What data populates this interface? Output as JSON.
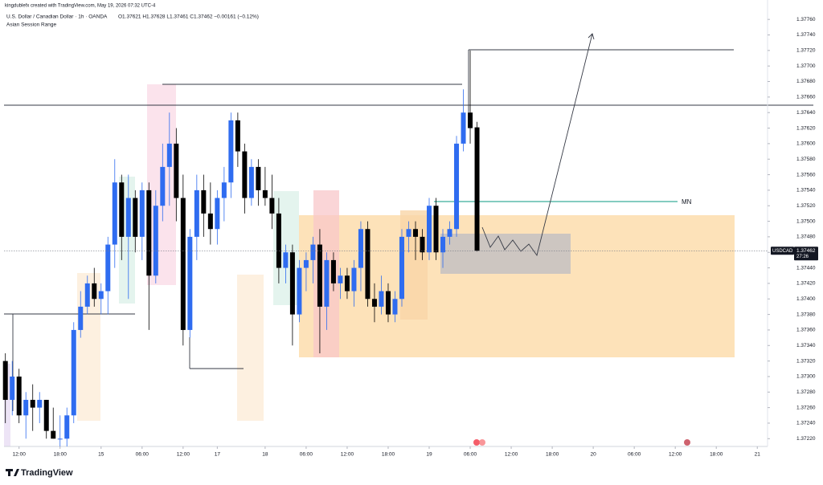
{
  "watermark": "kingdublefx created with TradingView.com, May 19, 2026 07:32 UTC-4",
  "footer": "TradingView",
  "chart_data": {
    "type": "candlestick",
    "symbol_line": "U.S. Dollar / Canadian Dollar · 1h · OANDA",
    "ohlc_line": "O1.37621 H1.37628 L1.37461 C1.37462 −0.00161 (−0.12%)",
    "indicator": "Asian Session Range",
    "annotation": "MN",
    "up_color": "#2f6cf0",
    "down_color": "#000000",
    "x": [
      -2,
      -1,
      0,
      1,
      2,
      3,
      4,
      5,
      6,
      7,
      8,
      9,
      10,
      11,
      12,
      13,
      14,
      15,
      16,
      17,
      18,
      19,
      20,
      21,
      22,
      23,
      24,
      25,
      26,
      27,
      28,
      29,
      30,
      31,
      32,
      33,
      34,
      35,
      36,
      37,
      38,
      39,
      40,
      41,
      42,
      43,
      44,
      45,
      46,
      47,
      48,
      49,
      50,
      51,
      52,
      53,
      54,
      55,
      56,
      57,
      58,
      59,
      60,
      61,
      62,
      63,
      64,
      65,
      66,
      67
    ],
    "open": [
      1.3732,
      1.3727,
      1.373,
      1.3725,
      1.3727,
      1.3726,
      1.3727,
      1.3723,
      1.3722,
      1.3722,
      1.3725,
      1.3736,
      1.3739,
      1.3742,
      1.374,
      1.3741,
      1.3747,
      1.3755,
      1.3748,
      1.3753,
      1.3748,
      1.3754,
      1.3743,
      1.3752,
      1.3757,
      1.376,
      1.3753,
      1.3736,
      1.3748,
      1.3754,
      1.3751,
      1.3749,
      1.3753,
      1.3755,
      1.3763,
      1.3759,
      1.3753,
      1.3757,
      1.3754,
      1.3753,
      1.3751,
      1.3744,
      1.3746,
      1.3738,
      1.3744,
      1.3745,
      1.3747,
      1.3739,
      1.3745,
      1.3742,
      1.3743,
      1.3741,
      1.3744,
      1.3749,
      1.374,
      1.3739,
      1.3741,
      1.3738,
      1.374,
      1.3748,
      1.3749,
      1.3748,
      1.3746,
      1.3752,
      1.3746,
      1.3748,
      1.3749,
      1.376,
      1.3764,
      1.37621
    ],
    "high": [
      1.3733,
      1.3732,
      1.3731,
      1.3728,
      1.3729,
      1.3728,
      1.3727,
      1.3726,
      1.3725,
      1.3726,
      1.3737,
      1.3741,
      1.3743,
      1.3744,
      1.3742,
      1.3748,
      1.3758,
      1.3756,
      1.3756,
      1.3754,
      1.3755,
      1.3755,
      1.3754,
      1.376,
      1.3764,
      1.3762,
      1.3756,
      1.3749,
      1.3756,
      1.3756,
      1.3755,
      1.3754,
      1.3757,
      1.3764,
      1.3764,
      1.376,
      1.3758,
      1.3758,
      1.3757,
      1.3756,
      1.3753,
      1.3747,
      1.3747,
      1.3745,
      1.3746,
      1.3748,
      1.3749,
      1.3746,
      1.3746,
      1.3744,
      1.3744,
      1.3745,
      1.375,
      1.375,
      1.3742,
      1.3743,
      1.3742,
      1.3741,
      1.3749,
      1.375,
      1.375,
      1.3749,
      1.3753,
      1.3753,
      1.3749,
      1.375,
      1.3761,
      1.3767,
      1.3772,
      1.37628
    ],
    "low": [
      1.3724,
      1.3725,
      1.3724,
      1.3722,
      1.3723,
      1.3724,
      1.3722,
      1.3722,
      1.3721,
      1.3721,
      1.3724,
      1.3735,
      1.3738,
      1.3739,
      1.3738,
      1.3738,
      1.3744,
      1.3745,
      1.374,
      1.3746,
      1.3745,
      1.3736,
      1.3742,
      1.375,
      1.3752,
      1.375,
      1.3734,
      1.3735,
      1.3745,
      1.3748,
      1.3747,
      1.3747,
      1.375,
      1.3753,
      1.3757,
      1.3751,
      1.3752,
      1.3752,
      1.3752,
      1.3749,
      1.3742,
      1.3742,
      1.3734,
      1.3737,
      1.3741,
      1.3742,
      1.3733,
      1.3736,
      1.3741,
      1.374,
      1.374,
      1.3739,
      1.3741,
      1.3739,
      1.3737,
      1.3738,
      1.3737,
      1.3737,
      1.3739,
      1.3746,
      1.3745,
      1.3745,
      1.3745,
      1.3745,
      1.3744,
      1.3747,
      1.3748,
      1.3759,
      1.376,
      1.37461
    ],
    "close": [
      1.3727,
      1.373,
      1.3725,
      1.3727,
      1.3726,
      1.3727,
      1.3723,
      1.3722,
      1.3722,
      1.3725,
      1.3736,
      1.3739,
      1.3742,
      1.374,
      1.3741,
      1.3747,
      1.3755,
      1.3748,
      1.3753,
      1.3748,
      1.3754,
      1.3743,
      1.3752,
      1.3757,
      1.376,
      1.3753,
      1.3736,
      1.3748,
      1.3754,
      1.3751,
      1.3749,
      1.3753,
      1.3755,
      1.3763,
      1.3759,
      1.3753,
      1.3757,
      1.3754,
      1.3753,
      1.3751,
      1.3744,
      1.3746,
      1.3738,
      1.3744,
      1.3745,
      1.3747,
      1.3739,
      1.3745,
      1.3742,
      1.3743,
      1.3741,
      1.3744,
      1.3749,
      1.374,
      1.3739,
      1.3741,
      1.3738,
      1.374,
      1.3748,
      1.3749,
      1.3748,
      1.3746,
      1.3752,
      1.3746,
      1.3748,
      1.3749,
      1.376,
      1.3764,
      1.3762,
      1.37462
    ],
    "xlim": [
      -2.2,
      109.5
    ],
    "xticks": [
      {
        "value": 0,
        "label": "12:00"
      },
      {
        "value": 6,
        "label": "18:00"
      },
      {
        "value": 12,
        "label": "15"
      },
      {
        "value": 18,
        "label": "06:00"
      },
      {
        "value": 24,
        "label": "12:00"
      },
      {
        "value": 29,
        "label": "17"
      },
      {
        "value": 36,
        "label": "18"
      },
      {
        "value": 42,
        "label": "06:00"
      },
      {
        "value": 48,
        "label": "12:00"
      },
      {
        "value": 54,
        "label": "18:00"
      },
      {
        "value": 60,
        "label": "19"
      },
      {
        "value": 66,
        "label": "06:00"
      },
      {
        "value": 72,
        "label": "12:00"
      },
      {
        "value": 78,
        "label": "18:00"
      },
      {
        "value": 84,
        "label": "20"
      },
      {
        "value": 90,
        "label": "06:00"
      },
      {
        "value": 96,
        "label": "12:00"
      },
      {
        "value": 102,
        "label": "18:00"
      },
      {
        "value": 108,
        "label": "21"
      }
    ],
    "ylim": [
      1.37211,
      1.37785
    ],
    "yticks": [
      {
        "value": 1.3722,
        "label": "1.37220"
      },
      {
        "value": 1.3724,
        "label": "1.37240"
      },
      {
        "value": 1.3726,
        "label": "1.37260"
      },
      {
        "value": 1.3728,
        "label": "1.37280"
      },
      {
        "value": 1.373,
        "label": "1.37300"
      },
      {
        "value": 1.3732,
        "label": "1.37320"
      },
      {
        "value": 1.3734,
        "label": "1.37340"
      },
      {
        "value": 1.3736,
        "label": "1.37360"
      },
      {
        "value": 1.3738,
        "label": "1.37380"
      },
      {
        "value": 1.374,
        "label": "1.37400"
      },
      {
        "value": 1.3742,
        "label": "1.37420"
      },
      {
        "value": 1.3744,
        "label": "1.37440"
      },
      {
        "value": 1.3746,
        "label": "1.37460"
      },
      {
        "value": 1.3748,
        "label": "1.37480"
      },
      {
        "value": 1.375,
        "label": "1.37500"
      },
      {
        "value": 1.3752,
        "label": "1.37520"
      },
      {
        "value": 1.3754,
        "label": "1.37540"
      },
      {
        "value": 1.3756,
        "label": "1.37560"
      },
      {
        "value": 1.3758,
        "label": "1.37580"
      },
      {
        "value": 1.376,
        "label": "1.37600"
      },
      {
        "value": 1.3762,
        "label": "1.37620"
      },
      {
        "value": 1.3764,
        "label": "1.37640"
      },
      {
        "value": 1.3766,
        "label": "1.37660"
      },
      {
        "value": 1.3768,
        "label": "1.37680"
      },
      {
        "value": 1.377,
        "label": "1.37700"
      },
      {
        "value": 1.3772,
        "label": "1.37720"
      },
      {
        "value": 1.3774,
        "label": "1.37740"
      },
      {
        "value": 1.3776,
        "label": "1.37760"
      }
    ],
    "last_price": {
      "symbol": "USDCAD",
      "value": 1.37462,
      "countdown": "27:26"
    }
  }
}
